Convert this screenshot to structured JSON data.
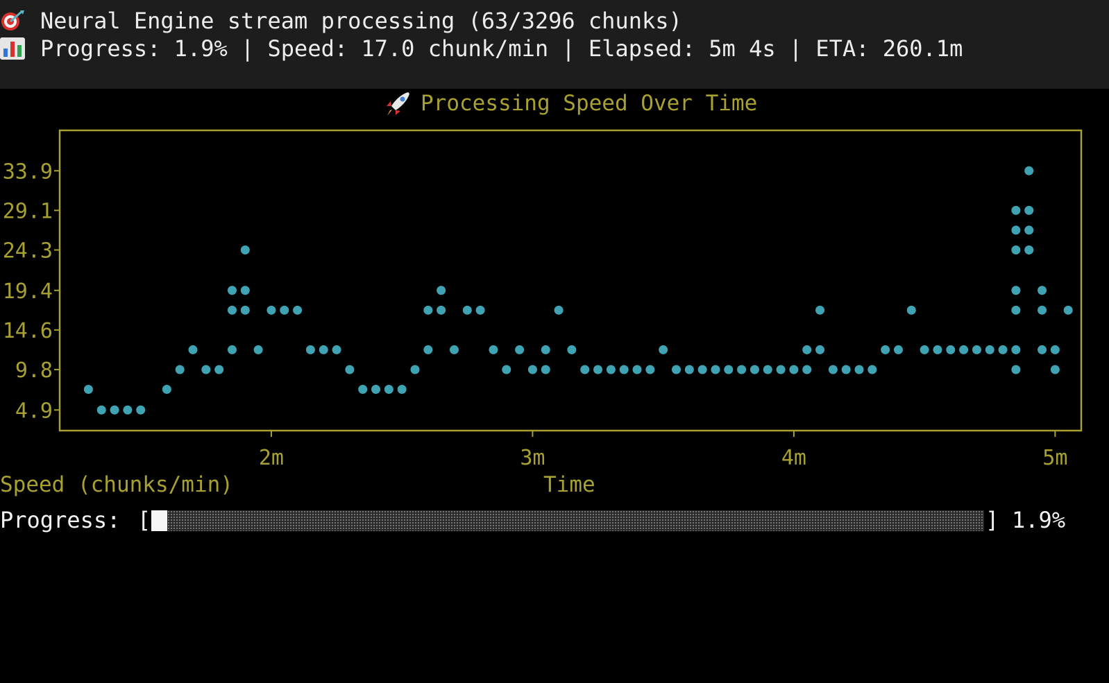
{
  "header": {
    "line1": "Neural Engine stream processing (63/3296 chunks)",
    "line2": "Progress: 1.9% | Speed: 17.0 chunk/min | Elapsed: 5m 4s | ETA: 260.1m",
    "icon1": "target-icon",
    "icon2": "bar-chart-icon"
  },
  "chart": {
    "title": "Processing Speed Over Time",
    "title_icon": "rocket-icon",
    "xlabel": "Time",
    "ylabel": "Speed (chunks/min)"
  },
  "progress": {
    "label": "Progress:",
    "open_bracket": "[",
    "close_bracket": "]",
    "percent_text": "1.9%",
    "fraction": 0.019
  },
  "colors": {
    "accent": "#a8a132",
    "marker": "#3fa3b3",
    "background": "#000000",
    "header_background": "#1d1d1d"
  },
  "chart_data": {
    "type": "scatter",
    "title": "Processing Speed Over Time",
    "xlabel": "Time",
    "ylabel": "Speed (chunks/min)",
    "x_unit": "minutes",
    "xlim": [
      1.19,
      5.1
    ],
    "ylim": [
      2.4,
      38.8
    ],
    "xticks": [
      2,
      3,
      4,
      5
    ],
    "xtick_labels": [
      "2m",
      "3m",
      "4m",
      "5m"
    ],
    "yticks": [
      4.9,
      9.8,
      14.6,
      19.4,
      24.3,
      29.1,
      33.9
    ],
    "ytick_labels": [
      "4.9",
      "9.8",
      "14.6",
      "19.4",
      "24.3",
      "29.1",
      "33.9"
    ],
    "grid": false,
    "legend": "none",
    "x": [
      1.3,
      1.35,
      1.4,
      1.45,
      1.5,
      1.6,
      1.65,
      1.7,
      1.75,
      1.8,
      1.85,
      1.85,
      1.85,
      1.9,
      1.9,
      1.9,
      1.95,
      2.0,
      2.05,
      2.1,
      2.15,
      2.2,
      2.25,
      2.3,
      2.35,
      2.4,
      2.45,
      2.5,
      2.55,
      2.6,
      2.6,
      2.65,
      2.65,
      2.7,
      2.75,
      2.8,
      2.85,
      2.9,
      2.95,
      3.0,
      3.05,
      3.05,
      3.1,
      3.15,
      3.2,
      3.25,
      3.3,
      3.35,
      3.4,
      3.45,
      3.5,
      3.55,
      3.6,
      3.65,
      3.7,
      3.75,
      3.8,
      3.85,
      3.9,
      3.95,
      4.0,
      4.05,
      4.05,
      4.1,
      4.1,
      4.15,
      4.2,
      4.25,
      4.3,
      4.35,
      4.4,
      4.45,
      4.5,
      4.55,
      4.6,
      4.65,
      4.7,
      4.75,
      4.8,
      4.85,
      4.85,
      4.85,
      4.85,
      4.85,
      4.85,
      4.85,
      4.9,
      4.9,
      4.9,
      4.9,
      4.95,
      4.95,
      4.95,
      5.0,
      5.0,
      5.05
    ],
    "y": [
      7.4,
      4.9,
      4.9,
      4.9,
      4.9,
      7.4,
      9.8,
      12.2,
      9.8,
      9.8,
      12.2,
      17.0,
      19.4,
      17.0,
      19.4,
      24.3,
      12.2,
      17.0,
      17.0,
      17.0,
      12.2,
      12.2,
      12.2,
      9.8,
      7.4,
      7.4,
      7.4,
      7.4,
      9.8,
      12.2,
      17.0,
      17.0,
      19.4,
      12.2,
      17.0,
      17.0,
      12.2,
      9.8,
      12.2,
      9.8,
      9.8,
      12.2,
      17.0,
      12.2,
      9.8,
      9.8,
      9.8,
      9.8,
      9.8,
      9.8,
      12.2,
      9.8,
      9.8,
      9.8,
      9.8,
      9.8,
      9.8,
      9.8,
      9.8,
      9.8,
      9.8,
      9.8,
      12.2,
      12.2,
      17.0,
      9.8,
      9.8,
      9.8,
      9.8,
      12.2,
      12.2,
      17.0,
      12.2,
      12.2,
      12.2,
      12.2,
      12.2,
      12.2,
      12.2,
      9.8,
      12.2,
      17.0,
      19.4,
      24.3,
      26.7,
      29.1,
      24.3,
      26.7,
      29.1,
      33.9,
      12.2,
      17.0,
      19.4,
      9.8,
      12.2,
      17.0
    ]
  }
}
